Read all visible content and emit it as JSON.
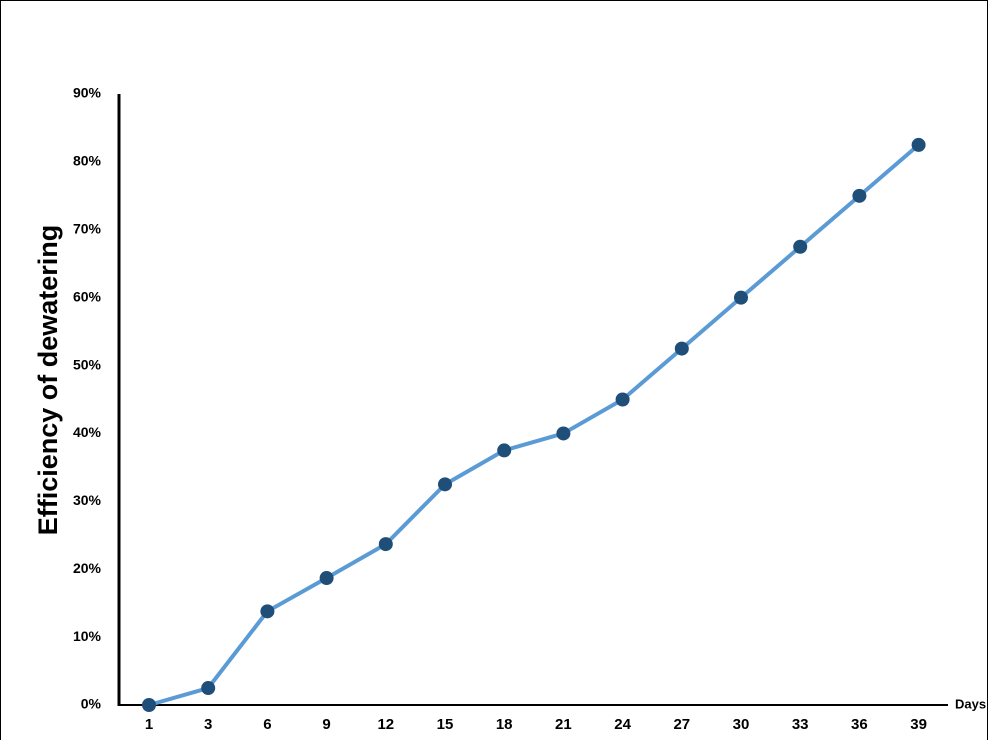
{
  "chart_data": {
    "type": "line",
    "title": "",
    "xlabel": "Days",
    "ylabel": "Efficiency of dewatering",
    "categories": [
      "1",
      "3",
      "6",
      "9",
      "12",
      "15",
      "18",
      "21",
      "24",
      "27",
      "30",
      "33",
      "36",
      "39"
    ],
    "series": [
      {
        "values": [
          0,
          2.5,
          13.8,
          18.7,
          23.7,
          32.5,
          37.5,
          40,
          45,
          52.5,
          60,
          67.5,
          75,
          82.5
        ],
        "line_color": "#5B9BD5",
        "marker_color": "#1F4E79"
      }
    ],
    "ylim": [
      0,
      90
    ],
    "yticks": [
      "0%",
      "10%",
      "20%",
      "30%",
      "40%",
      "50%",
      "60%",
      "70%",
      "80%",
      "90%"
    ],
    "grid": false,
    "legend": "none"
  }
}
